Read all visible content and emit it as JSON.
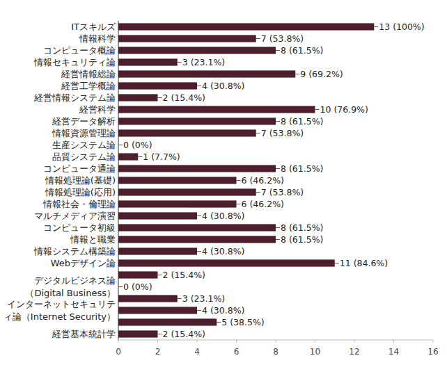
{
  "chart_data": {
    "type": "bar",
    "orientation": "horizontal",
    "categories": [
      "ITスキルズ",
      "情報科学",
      "コンピュータ概論",
      "情報セキュリティ論",
      "経営情報総論",
      "経営工学概論",
      "経営情報システム論",
      "経営科学",
      "経営データ解析",
      "情報資源管理論",
      "生産システム論",
      "品質システム論",
      "コンピュータ通論",
      "情報処理論(基礎)",
      "情報処理論(応用)",
      "情報社会・倫理論",
      "マルチメディア演習",
      "コンピュータ初級",
      "情報と職業",
      "情報システム構築論",
      "Webデザイン論",
      null,
      "デジタルビジネス論\n（Digital Business）",
      null,
      "インターネットセキュリテ\nィ論（Internet Security）",
      null,
      "経営基本統計学"
    ],
    "values": [
      13,
      7,
      8,
      3,
      9,
      4,
      2,
      10,
      8,
      7,
      0,
      1,
      8,
      6,
      7,
      6,
      4,
      8,
      8,
      4,
      11,
      2,
      0,
      3,
      4,
      5,
      2
    ],
    "value_labels": [
      "13 (100%)",
      "7 (53.8%)",
      "8 (61.5%)",
      "3 (23.1%)",
      "9 (69.2%)",
      "4 (30.8%)",
      "2 (15.4%)",
      "10 (76.9%)",
      "8 (61.5%)",
      "7 (53.8%)",
      "0 (0%)",
      "1 (7.7%)",
      "8 (61.5%)",
      "6 (46.2%)",
      "7 (53.8%)",
      "6 (46.2%)",
      "4 (30.8%)",
      "8 (61.5%)",
      "8 (61.5%)",
      "4 (30.8%)",
      "11 (84.6%)",
      "2 (15.4%)",
      "0 (0%)",
      "3 (23.1%)",
      "4 (30.8%)",
      "5 (38.5%)",
      "2 (15.4%)"
    ],
    "color": "#4d1f2c",
    "xlim": [
      0,
      16
    ],
    "xticks": [
      0,
      2,
      4,
      6,
      8,
      10,
      12,
      14,
      16
    ],
    "grid": false,
    "data_labels": true
  }
}
